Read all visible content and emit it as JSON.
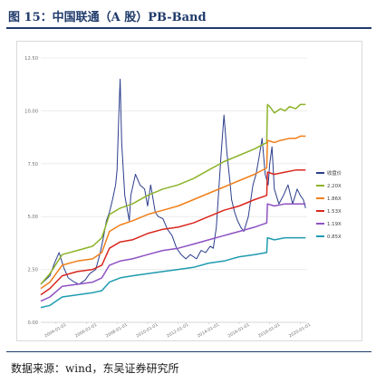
{
  "figure": {
    "title": "图 15：中国联通（A 股）PB-Band",
    "source": "数据来源：wind，东吴证券研究所"
  },
  "chart_data": {
    "type": "line",
    "x_tick_labels": [
      "2004-01-01",
      "2006-01-01",
      "2008-01-01",
      "2010-01-01",
      "2012-01-01",
      "2014-01-01",
      "2016-01-01",
      "2018-01-01",
      "2020-01-01"
    ],
    "x_range": [
      2003.0,
      2020.45
    ],
    "ylim": [
      0,
      12.5
    ],
    "y_ticks": [
      0,
      2.5,
      5,
      7.5,
      10,
      12.5
    ],
    "y_tick_labels": [
      "0.00",
      "2.50",
      "5.00",
      "7.50",
      "10.00",
      "12.50"
    ],
    "grid": true,
    "legend_position": "right",
    "colors": {
      "price": "#2c3e8c",
      "band_220": "#8db32a",
      "band_186": "#f07f1a",
      "band_153": "#d9281e",
      "band_119": "#8e52c2",
      "band_085": "#1f9bb0",
      "grid": "#ececec",
      "axis_text": "#707070"
    },
    "series": [
      {
        "name": "收盘价",
        "color_key": "price",
        "x": [
          2003.0,
          2003.3,
          2003.6,
          2003.9,
          2004.2,
          2004.5,
          2004.8,
          2005.2,
          2005.5,
          2005.9,
          2006.2,
          2006.6,
          2006.9,
          2007.1,
          2007.3,
          2007.5,
          2007.7,
          2007.9,
          2008.0,
          2008.1,
          2008.2,
          2008.3,
          2008.5,
          2008.8,
          2008.9,
          2009.2,
          2009.5,
          2009.8,
          2010.0,
          2010.2,
          2010.5,
          2010.7,
          2011.0,
          2011.3,
          2011.6,
          2011.9,
          2012.2,
          2012.5,
          2012.8,
          2013.2,
          2013.5,
          2013.8,
          2014.1,
          2014.3,
          2014.5,
          2014.8,
          2015.0,
          2015.2,
          2015.4,
          2015.5,
          2015.7,
          2015.9,
          2016.1,
          2016.3,
          2016.6,
          2016.9,
          2017.1,
          2017.3,
          2017.5,
          2017.7,
          2017.9,
          2018.0,
          2018.15,
          2018.3,
          2018.6,
          2018.9,
          2019.2,
          2019.5,
          2019.8,
          2020.0,
          2020.2,
          2020.35
        ],
        "y": [
          1.8,
          2.0,
          2.2,
          2.8,
          3.3,
          2.6,
          2.1,
          1.9,
          1.8,
          2.0,
          2.3,
          2.5,
          3.3,
          4.0,
          4.8,
          5.2,
          5.8,
          6.5,
          7.2,
          9.5,
          11.5,
          8.5,
          6.0,
          4.8,
          6.0,
          7.0,
          6.5,
          6.3,
          5.5,
          6.5,
          5.2,
          5.0,
          4.9,
          4.4,
          4.1,
          3.5,
          3.2,
          3.0,
          3.2,
          3.0,
          3.4,
          3.3,
          3.6,
          3.5,
          4.5,
          7.8,
          9.8,
          8.0,
          6.6,
          5.8,
          5.2,
          4.8,
          4.5,
          4.3,
          5.0,
          6.5,
          7.0,
          7.8,
          8.7,
          7.0,
          6.5,
          7.5,
          8.3,
          6.3,
          5.6,
          6.0,
          6.5,
          5.6,
          6.3,
          6.0,
          5.8,
          5.4
        ]
      },
      {
        "name": "2.20X",
        "color_key": "band_220",
        "x": [
          2003.0,
          2003.6,
          2004.4,
          2005.4,
          2006.4,
          2007.0,
          2007.5,
          2008.2,
          2009.0,
          2010.0,
          2011.0,
          2012.0,
          2013.0,
          2014.0,
          2015.0,
          2016.0,
          2017.0,
          2017.8,
          2017.85,
          2018.0,
          2018.3,
          2018.7,
          2019.0,
          2019.3,
          2019.7,
          2020.0,
          2020.35
        ],
        "y": [
          1.8,
          2.3,
          3.2,
          3.4,
          3.6,
          4.0,
          5.1,
          5.4,
          5.6,
          6.0,
          6.3,
          6.5,
          6.8,
          7.2,
          7.6,
          7.9,
          8.2,
          8.5,
          10.3,
          10.2,
          9.9,
          10.1,
          10.0,
          10.2,
          10.1,
          10.3,
          10.3
        ]
      },
      {
        "name": "1.86X",
        "color_key": "band_186",
        "x": [
          2003.0,
          2003.6,
          2004.4,
          2005.4,
          2006.4,
          2007.0,
          2007.5,
          2008.2,
          2009.0,
          2010.0,
          2011.0,
          2012.0,
          2013.0,
          2014.0,
          2015.0,
          2016.0,
          2017.0,
          2017.8,
          2017.85,
          2018.3,
          2018.7,
          2019.3,
          2019.7,
          2020.0,
          2020.35
        ],
        "y": [
          1.6,
          1.9,
          2.7,
          2.9,
          3.0,
          3.3,
          4.3,
          4.6,
          4.8,
          5.1,
          5.3,
          5.5,
          5.8,
          6.1,
          6.4,
          6.7,
          7.0,
          7.3,
          8.6,
          8.5,
          8.6,
          8.7,
          8.7,
          8.8,
          8.8
        ]
      },
      {
        "name": "1.53X",
        "color_key": "band_153",
        "x": [
          2003.0,
          2003.6,
          2004.4,
          2005.4,
          2006.4,
          2007.0,
          2007.5,
          2008.2,
          2009.0,
          2010.0,
          2011.0,
          2012.0,
          2013.0,
          2014.0,
          2015.0,
          2016.0,
          2017.0,
          2017.8,
          2017.85,
          2018.3,
          2019.0,
          2019.7,
          2020.35
        ],
        "y": [
          1.3,
          1.6,
          2.2,
          2.4,
          2.5,
          2.7,
          3.5,
          3.8,
          3.9,
          4.2,
          4.4,
          4.5,
          4.7,
          5.0,
          5.3,
          5.5,
          5.8,
          6.0,
          7.1,
          7.0,
          7.1,
          7.2,
          7.2
        ]
      },
      {
        "name": "1.19X",
        "color_key": "band_119",
        "x": [
          2003.0,
          2003.6,
          2004.4,
          2005.4,
          2006.4,
          2007.0,
          2007.5,
          2008.2,
          2009.0,
          2010.0,
          2011.0,
          2012.0,
          2013.0,
          2014.0,
          2015.0,
          2016.0,
          2017.0,
          2017.8,
          2017.85,
          2018.3,
          2019.0,
          2019.7,
          2020.35
        ],
        "y": [
          1.0,
          1.2,
          1.7,
          1.8,
          1.9,
          2.1,
          2.7,
          2.9,
          3.0,
          3.2,
          3.4,
          3.5,
          3.7,
          3.9,
          4.1,
          4.3,
          4.5,
          4.7,
          5.6,
          5.5,
          5.6,
          5.6,
          5.6
        ]
      },
      {
        "name": "0.85X",
        "color_key": "band_085",
        "x": [
          2003.0,
          2003.6,
          2004.4,
          2005.4,
          2006.4,
          2007.0,
          2007.5,
          2008.2,
          2009.0,
          2010.0,
          2011.0,
          2012.0,
          2013.0,
          2014.0,
          2015.0,
          2016.0,
          2017.0,
          2017.8,
          2017.85,
          2018.3,
          2019.0,
          2019.7,
          2020.35
        ],
        "y": [
          0.7,
          0.8,
          1.2,
          1.3,
          1.4,
          1.5,
          1.9,
          2.1,
          2.2,
          2.3,
          2.4,
          2.5,
          2.6,
          2.8,
          2.9,
          3.1,
          3.2,
          3.3,
          4.0,
          3.9,
          4.0,
          4.0,
          4.0
        ]
      }
    ]
  }
}
